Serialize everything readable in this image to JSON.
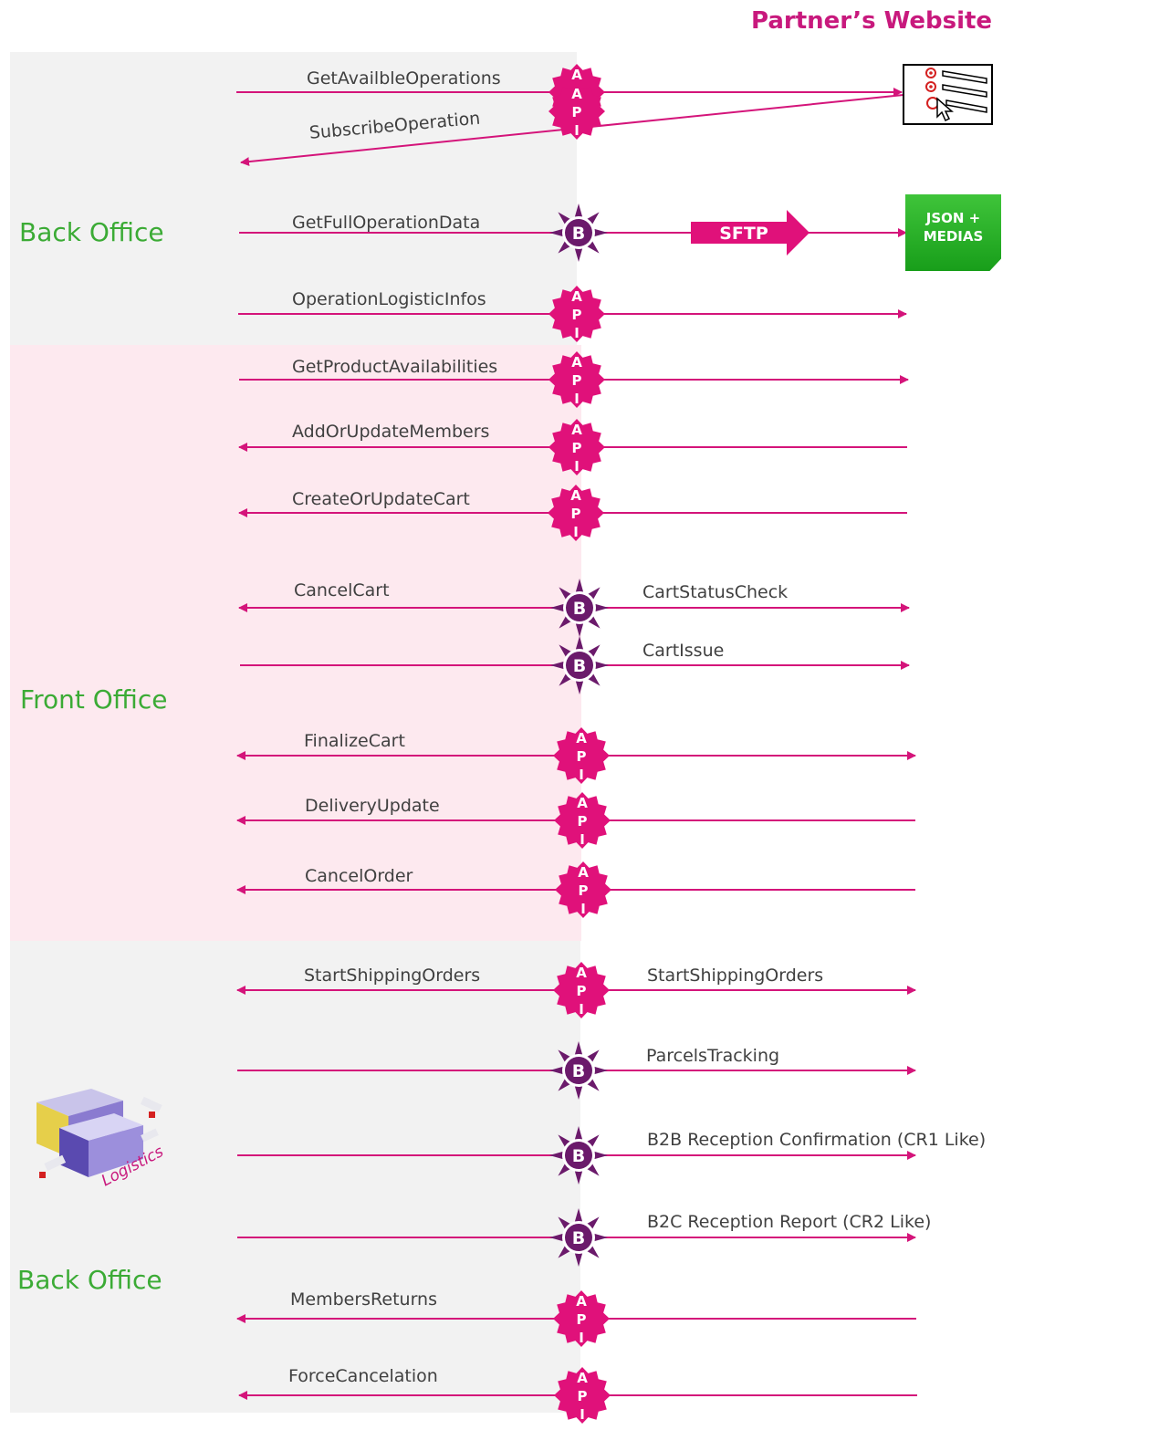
{
  "header": {
    "website_title": "Partner’s Website"
  },
  "sections": {
    "back_office_top": "Back Office",
    "front_office": "Front Office",
    "back_office_bottom": "Back Office"
  },
  "badges": {
    "api_letters": [
      "A",
      "P",
      "I"
    ],
    "batch_letter": "B"
  },
  "sftp": {
    "label": "SFTP"
  },
  "json_box": {
    "line1": "JSON +",
    "line2": "MEDIAS"
  },
  "logistics": {
    "label": "Logistics"
  },
  "operations": [
    {
      "id": "get-availble-operations",
      "left_label": "GetAvailbleOperations",
      "right_label": "",
      "badge": "api",
      "direction": "to-partner"
    },
    {
      "id": "subscribe-operation",
      "left_label": "SubscribeOperation",
      "right_label": "",
      "badge": "api",
      "direction": "to-back-office"
    },
    {
      "id": "get-full-operation-data",
      "left_label": "GetFullOperationData",
      "right_label": "",
      "badge": "batch",
      "direction": "to-partner"
    },
    {
      "id": "operation-logistic-infos",
      "left_label": "OperationLogisticInfos",
      "right_label": "",
      "badge": "api",
      "direction": "to-partner"
    },
    {
      "id": "get-product-availabilities",
      "left_label": "GetProductAvailabilities",
      "right_label": "",
      "badge": "api",
      "direction": "to-partner"
    },
    {
      "id": "add-or-update-members",
      "left_label": "AddOrUpdateMembers",
      "right_label": "",
      "badge": "api",
      "direction": "to-back-office"
    },
    {
      "id": "create-or-update-cart",
      "left_label": "CreateOrUpdateCart",
      "right_label": "",
      "badge": "api",
      "direction": "to-back-office"
    },
    {
      "id": "cancel-cart",
      "left_label": "CancelCart",
      "right_label": "CartStatusCheck",
      "badge": "batch",
      "direction": "both"
    },
    {
      "id": "cart-issue",
      "left_label": "",
      "right_label": "CartIssue",
      "badge": "batch",
      "direction": "to-partner"
    },
    {
      "id": "finalize-cart",
      "left_label": "FinalizeCart",
      "right_label": "",
      "badge": "api",
      "direction": "both"
    },
    {
      "id": "delivery-update",
      "left_label": "DeliveryUpdate",
      "right_label": "",
      "badge": "api",
      "direction": "to-back-office"
    },
    {
      "id": "cancel-order",
      "left_label": "CancelOrder",
      "right_label": "",
      "badge": "api",
      "direction": "to-back-office"
    },
    {
      "id": "start-shipping-orders",
      "left_label": "StartShippingOrders",
      "right_label": "StartShippingOrders",
      "badge": "api",
      "direction": "both"
    },
    {
      "id": "parcels-tracking",
      "left_label": "",
      "right_label": "ParcelsTracking",
      "badge": "batch",
      "direction": "to-partner"
    },
    {
      "id": "b2b-reception-confirmation",
      "left_label": "",
      "right_label": "B2B Reception Confirmation (CR1 Like)",
      "badge": "batch",
      "direction": "to-partner"
    },
    {
      "id": "b2c-reception-report",
      "left_label": "",
      "right_label": "B2C Reception Report (CR2 Like)",
      "badge": "batch",
      "direction": "to-partner"
    },
    {
      "id": "members-returns",
      "left_label": "MembersReturns",
      "right_label": "",
      "badge": "api",
      "direction": "to-back-office"
    },
    {
      "id": "force-cancelation",
      "left_label": "ForceCancelation",
      "right_label": "",
      "badge": "api",
      "direction": "to-back-office"
    }
  ],
  "colors": {
    "flow": "#d4147a",
    "api_badge": "#e0117a",
    "batch_badge": "#6b1a6b",
    "section_label": "#3bab35",
    "title": "#c8197d",
    "json_box": "#2fb32c",
    "zone_grey": "#f2f2f2",
    "zone_pink": "#fde9ef"
  }
}
